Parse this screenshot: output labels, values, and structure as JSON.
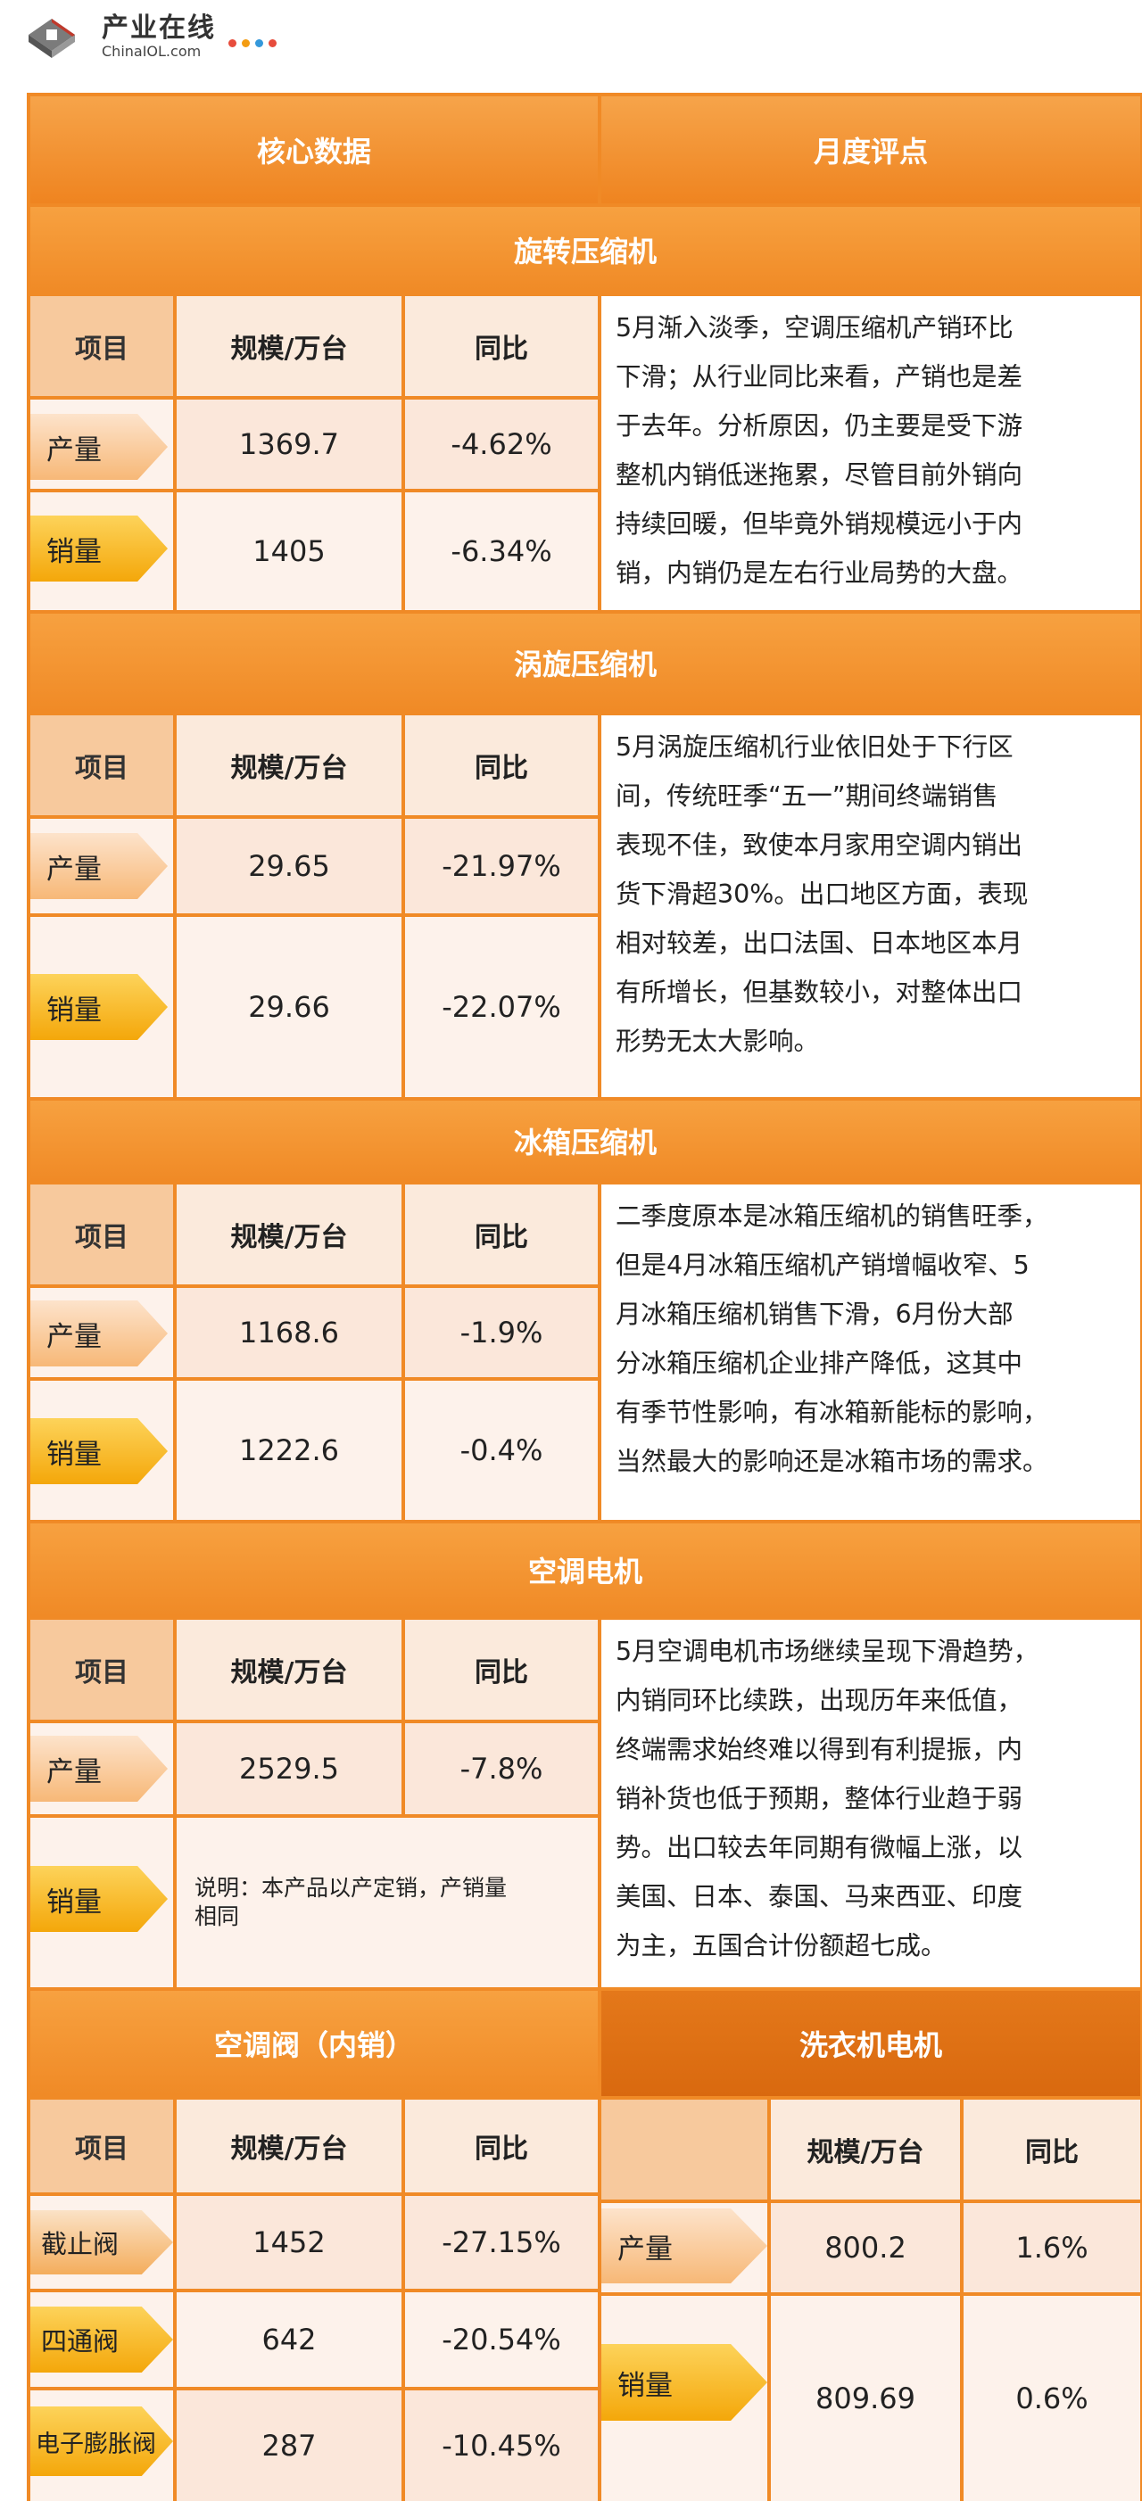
{
  "logo": {
    "cn": "产业在线",
    "en": "ChinaIOL.com",
    "dots": [
      "#e74c3c",
      "#f39c12",
      "#3498db",
      "#e74c3c"
    ]
  },
  "header": {
    "core": "核心数据",
    "review": "月度评点"
  },
  "labels": {
    "item": "项目",
    "scale": "规模/万台",
    "yoy": "同比",
    "production": "产量",
    "sales": "销量"
  },
  "rotary": {
    "title": "旋转压缩机",
    "prod_scale": "1369.7",
    "prod_yoy": "-4.62%",
    "sales_scale": "1405",
    "sales_yoy": "-6.34%",
    "lines": [
      "5月渐入淡季，空调压缩机产销环比",
      "下滑；从行业同比来看，产销也是差",
      "于去年。分析原因，仍主要是受下游",
      "整机内销低迷拖累，尽管目前外销向",
      "持续回暖，但毕竟外销规模远小于内",
      "销，内销仍是左右行业局势的大盘。"
    ]
  },
  "scroll": {
    "title": "涡旋压缩机",
    "prod_scale": "29.65",
    "prod_yoy": "-21.97%",
    "sales_scale": "29.66",
    "sales_yoy": "-22.07%",
    "lines": [
      "5月涡旋压缩机行业依旧处于下行区",
      "间，传统旺季“五一”期间终端销售",
      "表现不佳，致使本月家用空调内销出",
      "货下滑超30%。出口地区方面，表现",
      "相对较差，出口法国、日本地区本月",
      "有所增长，但基数较小，对整体出口",
      "形势无太大影响。"
    ]
  },
  "fridge": {
    "title": "冰箱压缩机",
    "prod_scale": "1168.6",
    "prod_yoy": "-1.9%",
    "sales_scale": "1222.6",
    "sales_yoy": "-0.4%",
    "lines": [
      "二季度原本是冰箱压缩机的销售旺季，",
      "但是4月冰箱压缩机产销增幅收窄、5",
      "月冰箱压缩机销售下滑，6月份大部",
      "分冰箱压缩机企业排产降低，这其中",
      "有季节性影响，有冰箱新能标的影响，",
      "当然最大的影响还是冰箱市场的需求。"
    ]
  },
  "motor": {
    "title": "空调电机",
    "prod_scale": "2529.5",
    "prod_yoy": "-7.8%",
    "note_line1": "说明：本产品以产定销，产销量",
    "note_line2": "相同",
    "lines": [
      "5月空调电机市场继续呈现下滑趋势，",
      "内销同环比续跌，出现历年来低值，",
      "终端需求始终难以得到有利提振，内",
      "销补货也低于预期，整体行业趋于弱",
      "势。出口较去年同期有微幅上涨，以",
      "美国、日本、泰国、马来西亚、印度",
      "为主，五国合计份额超七成。"
    ]
  },
  "valve": {
    "title": "空调阀（内销）",
    "rows": [
      {
        "name": "截止阀",
        "scale": "1452",
        "yoy": "-27.15%"
      },
      {
        "name": "四通阀",
        "scale": "642",
        "yoy": "-20.54%"
      },
      {
        "name": "电子膨胀阀",
        "scale": "287",
        "yoy": "-10.45%"
      }
    ]
  },
  "washer": {
    "title": "洗衣机电机",
    "prod_scale": "800.2",
    "prod_yoy": "1.6%",
    "sales_scale": "809.69",
    "sales_yoy": "0.6%"
  }
}
